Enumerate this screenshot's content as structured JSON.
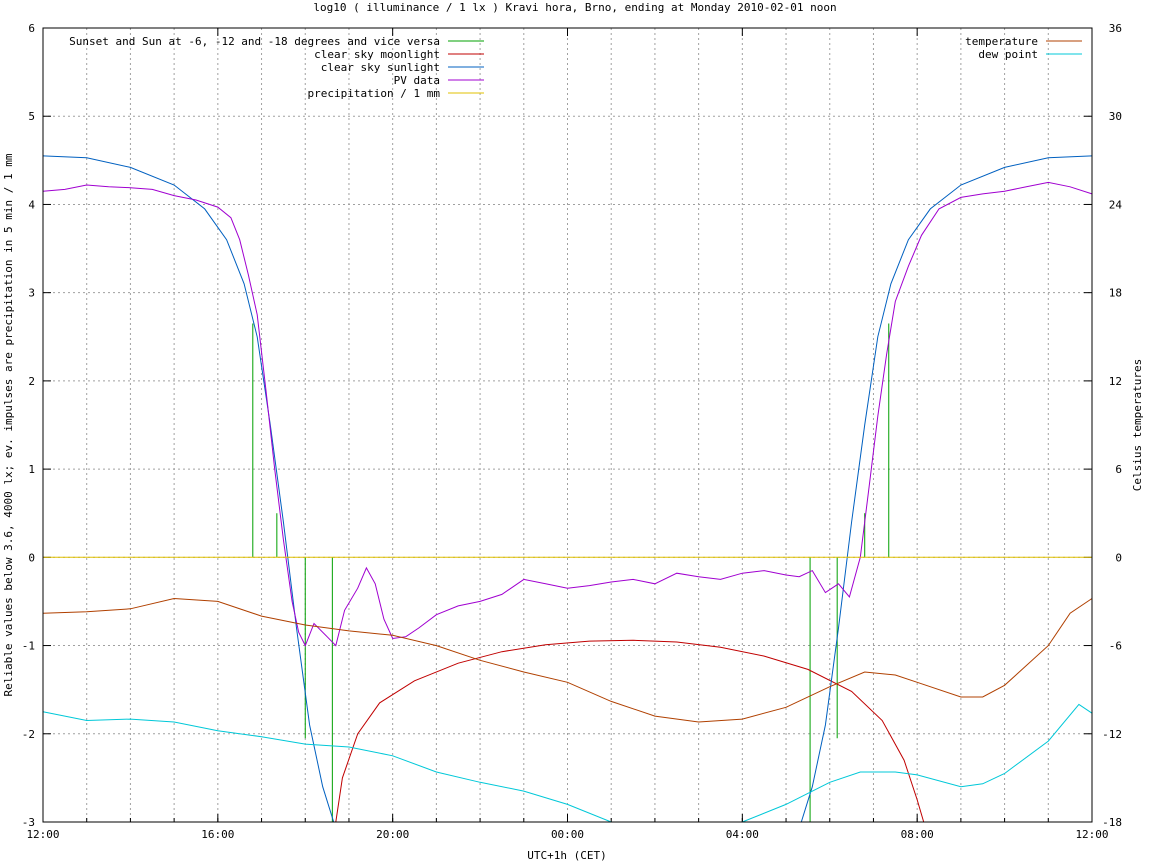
{
  "chart_data": {
    "type": "line",
    "title": "log10 ( illuminance / 1 lx ) Kravi hora, Brno, ending at Monday 2010-02-01 noon",
    "xlabel": "UTC+1h (CET)",
    "ylabel": "Reliable values below 3.6, 4000 lx; ev. impulses are precipitation in 5 min / 1 mm",
    "y2label": "Celsius temperatures",
    "xlim": [
      12,
      36
    ],
    "ylim": [
      -3,
      6
    ],
    "y2lim": [
      -18,
      36
    ],
    "x_ticks": [
      {
        "v": 12,
        "label": "12:00"
      },
      {
        "v": 16,
        "label": "16:00"
      },
      {
        "v": 20,
        "label": "20:00"
      },
      {
        "v": 24,
        "label": "00:00"
      },
      {
        "v": 28,
        "label": "04:00"
      },
      {
        "v": 32,
        "label": "08:00"
      },
      {
        "v": 36,
        "label": "12:00"
      }
    ],
    "y_ticks": [
      {
        "v": -3,
        "label": "-3"
      },
      {
        "v": -2,
        "label": "-2"
      },
      {
        "v": -1,
        "label": "-1"
      },
      {
        "v": 0,
        "label": "0"
      },
      {
        "v": 1,
        "label": "1"
      },
      {
        "v": 2,
        "label": "2"
      },
      {
        "v": 3,
        "label": "3"
      },
      {
        "v": 4,
        "label": "4"
      },
      {
        "v": 5,
        "label": "5"
      },
      {
        "v": 6,
        "label": "6"
      }
    ],
    "y2_ticks": [
      {
        "v": -18,
        "label": "-18"
      },
      {
        "v": -12,
        "label": "-12"
      },
      {
        "v": -6,
        "label": "-6"
      },
      {
        "v": 0,
        "label": "0"
      },
      {
        "v": 6,
        "label": "6"
      },
      {
        "v": 12,
        "label": "12"
      },
      {
        "v": 18,
        "label": "18"
      },
      {
        "v": 24,
        "label": "24"
      },
      {
        "v": 30,
        "label": "30"
      },
      {
        "v": 36,
        "label": "36"
      }
    ],
    "grid": true,
    "legend_left": "top-left",
    "legend_right": "top-right",
    "series": [
      {
        "name": "Sunset and Sun at -6, -12 and -18 degrees and vice versa",
        "color": "#00a000",
        "kind": "impulse",
        "axis": "y",
        "points": [
          [
            16.8,
            2.65
          ],
          [
            17.35,
            0.5
          ],
          [
            18.0,
            -2.05
          ],
          [
            18.62,
            -3.0
          ],
          [
            29.55,
            -3.0
          ],
          [
            30.17,
            -2.05
          ],
          [
            30.8,
            0.5
          ],
          [
            31.35,
            2.65
          ]
        ]
      },
      {
        "name": "clear sky moonlight",
        "color": "#c00000",
        "kind": "line",
        "axis": "y",
        "points": [
          [
            18.7,
            -3.0
          ],
          [
            18.85,
            -2.5
          ],
          [
            19.2,
            -2.0
          ],
          [
            19.7,
            -1.65
          ],
          [
            20.5,
            -1.4
          ],
          [
            21.5,
            -1.2
          ],
          [
            22.5,
            -1.07
          ],
          [
            23.5,
            -0.99
          ],
          [
            24.5,
            -0.95
          ],
          [
            25.5,
            -0.94
          ],
          [
            26.5,
            -0.96
          ],
          [
            27.5,
            -1.02
          ],
          [
            28.5,
            -1.12
          ],
          [
            29.5,
            -1.27
          ],
          [
            30.5,
            -1.52
          ],
          [
            31.2,
            -1.85
          ],
          [
            31.7,
            -2.3
          ],
          [
            32.0,
            -2.75
          ],
          [
            32.15,
            -3.0
          ]
        ]
      },
      {
        "name": "clear sky sunlight",
        "color": "#0060c0",
        "kind": "line",
        "axis": "y",
        "points": [
          [
            12.0,
            4.55
          ],
          [
            13.0,
            4.53
          ],
          [
            14.0,
            4.42
          ],
          [
            15.0,
            4.22
          ],
          [
            15.7,
            3.95
          ],
          [
            16.2,
            3.6
          ],
          [
            16.6,
            3.1
          ],
          [
            16.9,
            2.5
          ],
          [
            17.2,
            1.5
          ],
          [
            17.5,
            0.4
          ],
          [
            17.8,
            -0.8
          ],
          [
            18.1,
            -1.9
          ],
          [
            18.4,
            -2.6
          ],
          [
            18.65,
            -3.0
          ],
          [
            29.35,
            -3.0
          ],
          [
            29.6,
            -2.6
          ],
          [
            29.9,
            -1.9
          ],
          [
            30.2,
            -0.8
          ],
          [
            30.5,
            0.4
          ],
          [
            30.8,
            1.5
          ],
          [
            31.1,
            2.5
          ],
          [
            31.4,
            3.1
          ],
          [
            31.8,
            3.6
          ],
          [
            32.3,
            3.95
          ],
          [
            33.0,
            4.22
          ],
          [
            34.0,
            4.42
          ],
          [
            35.0,
            4.53
          ],
          [
            36.0,
            4.55
          ]
        ]
      },
      {
        "name": "PV data",
        "color": "#a000d0",
        "kind": "line",
        "axis": "y",
        "points": [
          [
            12.0,
            4.15
          ],
          [
            12.5,
            4.17
          ],
          [
            13.0,
            4.22
          ],
          [
            13.5,
            4.2
          ],
          [
            14.0,
            4.19
          ],
          [
            14.5,
            4.17
          ],
          [
            15.0,
            4.1
          ],
          [
            15.5,
            4.05
          ],
          [
            16.0,
            3.97
          ],
          [
            16.3,
            3.85
          ],
          [
            16.5,
            3.6
          ],
          [
            16.7,
            3.2
          ],
          [
            16.9,
            2.75
          ],
          [
            17.1,
            1.9
          ],
          [
            17.3,
            1.0
          ],
          [
            17.5,
            0.2
          ],
          [
            17.7,
            -0.5
          ],
          [
            17.85,
            -0.85
          ],
          [
            18.0,
            -1.0
          ],
          [
            18.2,
            -0.75
          ],
          [
            18.5,
            -0.9
          ],
          [
            18.7,
            -1.0
          ],
          [
            18.9,
            -0.6
          ],
          [
            19.2,
            -0.35
          ],
          [
            19.4,
            -0.12
          ],
          [
            19.6,
            -0.3
          ],
          [
            19.8,
            -0.7
          ],
          [
            20.0,
            -0.92
          ],
          [
            20.3,
            -0.9
          ],
          [
            20.6,
            -0.8
          ],
          [
            21.0,
            -0.65
          ],
          [
            21.5,
            -0.55
          ],
          [
            22.0,
            -0.5
          ],
          [
            22.5,
            -0.42
          ],
          [
            23.0,
            -0.25
          ],
          [
            23.5,
            -0.3
          ],
          [
            24.0,
            -0.35
          ],
          [
            24.5,
            -0.32
          ],
          [
            25.0,
            -0.28
          ],
          [
            25.5,
            -0.25
          ],
          [
            26.0,
            -0.3
          ],
          [
            26.5,
            -0.18
          ],
          [
            27.0,
            -0.22
          ],
          [
            27.5,
            -0.25
          ],
          [
            28.0,
            -0.18
          ],
          [
            28.5,
            -0.15
          ],
          [
            29.0,
            -0.2
          ],
          [
            29.3,
            -0.22
          ],
          [
            29.6,
            -0.15
          ],
          [
            29.9,
            -0.4
          ],
          [
            30.2,
            -0.3
          ],
          [
            30.45,
            -0.45
          ],
          [
            30.7,
            0.0
          ],
          [
            30.9,
            0.8
          ],
          [
            31.1,
            1.6
          ],
          [
            31.3,
            2.3
          ],
          [
            31.5,
            2.9
          ],
          [
            31.8,
            3.3
          ],
          [
            32.1,
            3.65
          ],
          [
            32.5,
            3.95
          ],
          [
            33.0,
            4.08
          ],
          [
            33.5,
            4.12
          ],
          [
            34.0,
            4.15
          ],
          [
            34.5,
            4.2
          ],
          [
            35.0,
            4.25
          ],
          [
            35.5,
            4.2
          ],
          [
            36.0,
            4.12
          ]
        ]
      },
      {
        "name": "precipitation / 1 mm",
        "color": "#e0c000",
        "kind": "line",
        "axis": "y",
        "points": [
          [
            12.0,
            0.0
          ],
          [
            36.0,
            0.0
          ]
        ]
      },
      {
        "name": "temperature",
        "color": "#b04000",
        "kind": "line",
        "axis": "y2",
        "points": [
          [
            12.0,
            -3.8
          ],
          [
            13.0,
            -3.7
          ],
          [
            14.0,
            -3.5
          ],
          [
            15.0,
            -2.8
          ],
          [
            16.0,
            -3.0
          ],
          [
            17.0,
            -4.0
          ],
          [
            18.0,
            -4.6
          ],
          [
            19.0,
            -5.0
          ],
          [
            20.0,
            -5.3
          ],
          [
            21.0,
            -6.0
          ],
          [
            22.0,
            -7.0
          ],
          [
            23.0,
            -7.8
          ],
          [
            24.0,
            -8.5
          ],
          [
            25.0,
            -9.8
          ],
          [
            26.0,
            -10.8
          ],
          [
            27.0,
            -11.2
          ],
          [
            28.0,
            -11.0
          ],
          [
            29.0,
            -10.2
          ],
          [
            30.0,
            -8.8
          ],
          [
            30.8,
            -7.8
          ],
          [
            31.5,
            -8.0
          ],
          [
            32.0,
            -8.5
          ],
          [
            33.0,
            -9.5
          ],
          [
            33.5,
            -9.5
          ],
          [
            34.0,
            -8.7
          ],
          [
            35.0,
            -6.0
          ],
          [
            35.5,
            -3.8
          ],
          [
            36.0,
            -2.8
          ]
        ]
      },
      {
        "name": "dew point",
        "color": "#00c8d8",
        "kind": "line",
        "axis": "y2",
        "points": [
          [
            12.0,
            -10.5
          ],
          [
            13.0,
            -11.1
          ],
          [
            14.0,
            -11.0
          ],
          [
            15.0,
            -11.2
          ],
          [
            16.0,
            -11.8
          ],
          [
            17.0,
            -12.2
          ],
          [
            18.0,
            -12.7
          ],
          [
            19.0,
            -12.9
          ],
          [
            20.0,
            -13.5
          ],
          [
            21.0,
            -14.6
          ],
          [
            22.0,
            -15.3
          ],
          [
            23.0,
            -15.9
          ],
          [
            24.0,
            -16.8
          ],
          [
            25.0,
            -18.0
          ],
          [
            28.0,
            -18.0
          ],
          [
            29.0,
            -16.8
          ],
          [
            30.0,
            -15.3
          ],
          [
            30.7,
            -14.6
          ],
          [
            31.5,
            -14.6
          ],
          [
            32.0,
            -14.8
          ],
          [
            33.0,
            -15.6
          ],
          [
            33.5,
            -15.4
          ],
          [
            34.0,
            -14.7
          ],
          [
            35.0,
            -12.5
          ],
          [
            35.7,
            -10.0
          ],
          [
            36.0,
            -10.6
          ]
        ]
      }
    ]
  }
}
